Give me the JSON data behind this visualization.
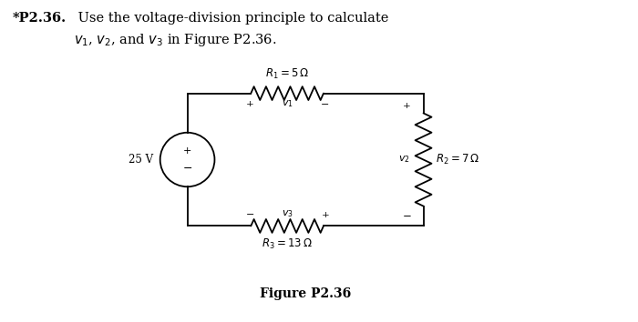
{
  "title_bold": "*P2.36.",
  "title_normal": " Use the voltage-division principle to calculate",
  "title_line2": "$v_1$, $v_2$, and $v_3$ in Figure P2.36.",
  "figure_caption": "Figure P2.36",
  "R1_label": "$R_1 = 5\\,\\Omega$",
  "R2_label": "$R_2 = 7\\,\\Omega$",
  "R3_label": "$R_3 = 13\\,\\Omega$",
  "v1_label": "$v_1$",
  "v2_label": "$v_2$",
  "v3_label": "$v_3$",
  "source_label": "25 V",
  "bg_color": "#ffffff",
  "line_color": "#000000",
  "font_size_title": 10.5,
  "font_size_labels": 8.5,
  "font_size_caption": 10
}
